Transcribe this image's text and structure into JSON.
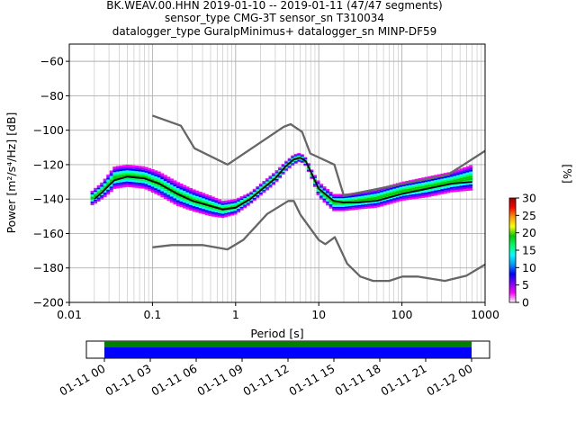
{
  "chart_data": [
    {
      "type": "heatmap",
      "title_lines": [
        "BK.WEAV.00.HHN   2019-01-10 -- 2019-01-11  (47/47 segments)",
        "sensor_type CMG-3T sensor_sn T310034",
        "datalogger_type GuralpMinimus+ datalogger_sn MINP-DF59"
      ],
      "xlabel": "Period [s]",
      "ylabel": "Power [m²/s⁴/Hz] [dB]",
      "x_scale": "log",
      "xlim": [
        0.01,
        1000
      ],
      "ylim": [
        -200,
        -50
      ],
      "x_ticks": [
        0.01,
        0.1,
        1,
        10,
        100,
        1000
      ],
      "x_tick_labels": [
        "0.01",
        "0.1",
        "1",
        "10",
        "100",
        "1000"
      ],
      "y_ticks": [
        -200,
        -180,
        -160,
        -140,
        -120,
        -100,
        -80,
        -60
      ],
      "y_tick_labels": [
        "−200",
        "−180",
        "−160",
        "−140",
        "−120",
        "−100",
        "−80",
        "−60"
      ],
      "grid": true,
      "colorbar": {
        "label": "[%]",
        "min": 0,
        "max": 30,
        "ticks": [
          0,
          5,
          10,
          15,
          20,
          25,
          30
        ],
        "tick_labels": [
          "0",
          "5",
          "10",
          "15",
          "20",
          "25",
          "30"
        ],
        "colormap": [
          "#ffffff",
          "#ff00ff",
          "#7f00ff",
          "#0000ff",
          "#0099ff",
          "#00ffff",
          "#00ff66",
          "#00cc00",
          "#ffff00",
          "#ff9900",
          "#ff0000",
          "#990000"
        ]
      },
      "series": [
        {
          "name": "",
          "role": "mode-line",
          "color": "#000000",
          "x": [
            0.02,
            0.025,
            0.03,
            0.035,
            0.05,
            0.08,
            0.12,
            0.2,
            0.3,
            0.5,
            0.7,
            1,
            1.5,
            2,
            3,
            4,
            5,
            6,
            7,
            8,
            10,
            15,
            20,
            30,
            50,
            100,
            200,
            400,
            700
          ],
          "y": [
            -140,
            -136,
            -132,
            -129,
            -127,
            -128,
            -131,
            -137,
            -141,
            -144,
            -146,
            -145,
            -140,
            -135,
            -128,
            -121,
            -117,
            -116,
            -118,
            -124,
            -134,
            -141,
            -142,
            -142,
            -141,
            -137,
            -134,
            -131,
            -130
          ]
        },
        {
          "name": "",
          "role": "high-noise-model",
          "color": "#666666",
          "x": [
            0.1,
            0.22,
            0.32,
            0.8,
            3.8,
            4.6,
            6.3,
            7.9,
            15.4,
            20,
            354.8,
            1000
          ],
          "y": [
            -91.5,
            -97.4,
            -110.5,
            -120,
            -98,
            -96.5,
            -101,
            -113.5,
            -120,
            -138,
            -126,
            -112
          ]
        },
        {
          "name": "",
          "role": "low-noise-model",
          "color": "#666666",
          "x": [
            0.1,
            0.17,
            0.4,
            0.8,
            1.24,
            2.4,
            4.3,
            5.0,
            6.0,
            10.0,
            12.0,
            15.6,
            21.9,
            31.6,
            45.0,
            70.0,
            101.0,
            154.0,
            328.0,
            600.0,
            1000.0
          ],
          "y": [
            -168,
            -166.7,
            -166.7,
            -169.2,
            -163.7,
            -148.6,
            -141.1,
            -141.1,
            -149.0,
            -163.8,
            -166.2,
            -162.1,
            -177.5,
            -185.0,
            -187.5,
            -187.5,
            -185.0,
            -185.0,
            -187.5,
            -184.4,
            -178.0
          ]
        },
        {
          "name": "",
          "role": "psd-density-band",
          "x": [
            0.018,
            0.02,
            0.025,
            0.03,
            0.035,
            0.05,
            0.08,
            0.12,
            0.2,
            0.3,
            0.5,
            0.7,
            1,
            1.5,
            2,
            3,
            4,
            5,
            6,
            7,
            8,
            10,
            15,
            20,
            30,
            50,
            100,
            200,
            400,
            700
          ],
          "y_low": [
            -144,
            -143,
            -140,
            -137,
            -134,
            -133,
            -134,
            -138,
            -144,
            -147,
            -150,
            -151,
            -149,
            -143,
            -138,
            -131,
            -124,
            -120,
            -118,
            -121,
            -127,
            -139,
            -147,
            -147,
            -146,
            -145,
            -141,
            -139,
            -136,
            -135
          ],
          "y_high": [
            -136,
            -134,
            -130,
            -125,
            -121,
            -120,
            -121,
            -124,
            -130,
            -134,
            -138,
            -141,
            -140,
            -136,
            -131,
            -124,
            -118,
            -114,
            -113,
            -116,
            -122,
            -130,
            -137,
            -137,
            -136,
            -134,
            -130,
            -127,
            -124,
            -120
          ]
        }
      ]
    },
    {
      "type": "bar",
      "role": "data-coverage",
      "x_tick_labels": [
        "01-11 00",
        "01-11 03",
        "01-11 06",
        "01-11 09",
        "01-11 12",
        "01-11 15",
        "01-11 18",
        "01-11 21",
        "01-12 00"
      ],
      "coverage_start": "01-11 00",
      "coverage_end": "01-12 00",
      "colors": {
        "used": "#0000ff",
        "available": "#008000"
      }
    }
  ]
}
